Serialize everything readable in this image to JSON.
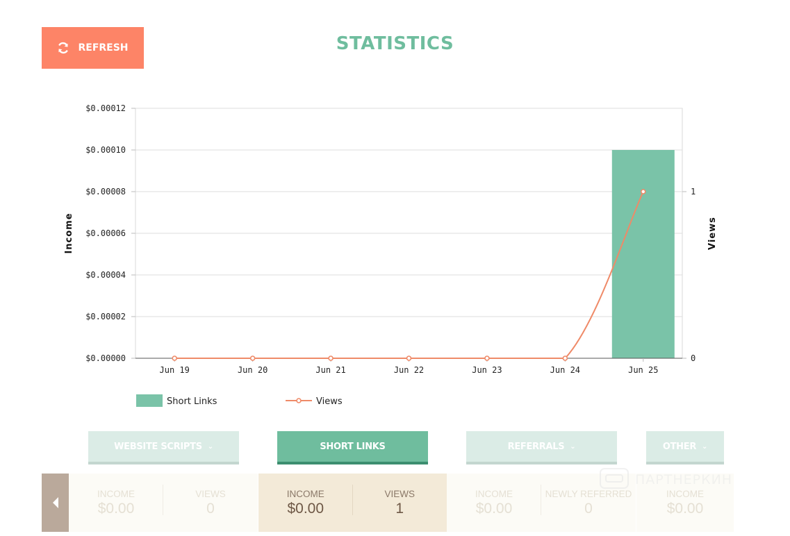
{
  "header": {
    "refresh_label": "REFRESH",
    "title": "STATISTICS",
    "refresh_color": "#fd8467",
    "title_color": "#6fbd9e"
  },
  "chart_data": {
    "type": "bar+line",
    "categories": [
      "Jun 19",
      "Jun 20",
      "Jun 21",
      "Jun 22",
      "Jun 23",
      "Jun 24",
      "Jun 25"
    ],
    "series": [
      {
        "name": "Short Links",
        "type": "bar",
        "axis": "left",
        "values": [
          0,
          0,
          0,
          0,
          0,
          0,
          0.0001
        ],
        "color": "#7ac3a8"
      },
      {
        "name": "Views",
        "type": "line",
        "axis": "right",
        "values": [
          0,
          0,
          0,
          0,
          0,
          0,
          1
        ],
        "color": "#ef8a68"
      }
    ],
    "ylabel_left": "Income",
    "ylabel_right": "Views",
    "ylim_left": [
      0,
      0.00012
    ],
    "left_ticks": [
      "$0.00000",
      "$0.00002",
      "$0.00004",
      "$0.00006",
      "$0.00008",
      "$0.00010",
      "$0.00012"
    ],
    "ylim_right": [
      0,
      1.5
    ],
    "right_ticks": [
      "0",
      "1"
    ],
    "grid": true,
    "legend": "bottom-left"
  },
  "tabs": [
    {
      "label": "WEBSITE SCRIPTS",
      "active": false,
      "dropdown": true
    },
    {
      "label": "SHORT LINKS",
      "active": true,
      "dropdown": false
    },
    {
      "label": "REFERRALS",
      "active": false,
      "dropdown": true
    },
    {
      "label": "OTHER",
      "active": false,
      "dropdown": true
    }
  ],
  "stats": {
    "website_scripts": {
      "income_label": "INCOME",
      "income_value": "$0.00",
      "views_label": "VIEWS",
      "views_value": "0"
    },
    "short_links": {
      "income_label": "INCOME",
      "income_value": "$0.00",
      "views_label": "VIEWS",
      "views_value": "1"
    },
    "referrals": {
      "income_label": "INCOME",
      "income_value": "$0.00",
      "referred_label": "NEWLY REFERRED",
      "referred_value": "0"
    },
    "other": {
      "income_label": "INCOME",
      "income_value": "$0.00"
    }
  },
  "watermark": {
    "text": "ПАРТНЕРКИН"
  }
}
